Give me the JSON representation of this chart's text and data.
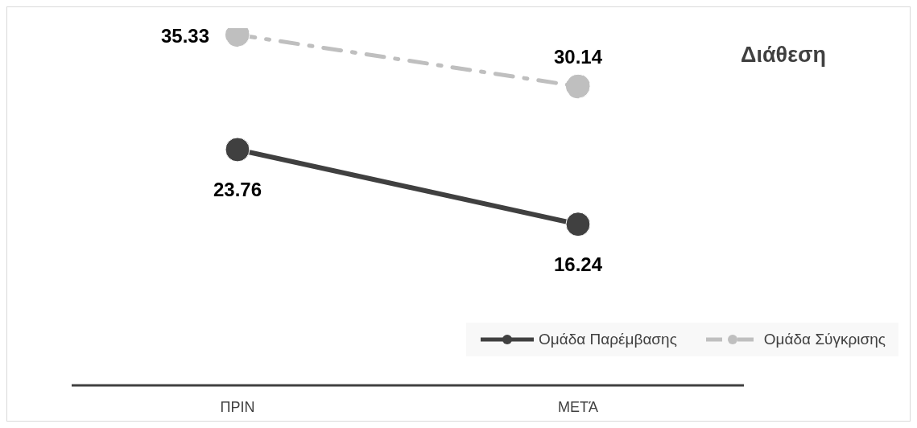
{
  "chart_data": {
    "type": "line",
    "title": "Διάθεση",
    "categories": [
      "ΠΡΙΝ",
      "ΜΕΤΆ"
    ],
    "series": [
      {
        "name": "Ομάδα Παρέμβασης",
        "color": "#404040",
        "values": [
          23.76,
          16.24
        ],
        "line_style": "solid"
      },
      {
        "name": "Ομάδα Σύγκρισης",
        "color": "#bfbfbf",
        "values": [
          35.33,
          30.14
        ],
        "line_style": "dashed"
      }
    ],
    "tick_labels": "x",
    "grid": false,
    "legend": "bottom right",
    "marker": "circle",
    "data_labels": true
  }
}
